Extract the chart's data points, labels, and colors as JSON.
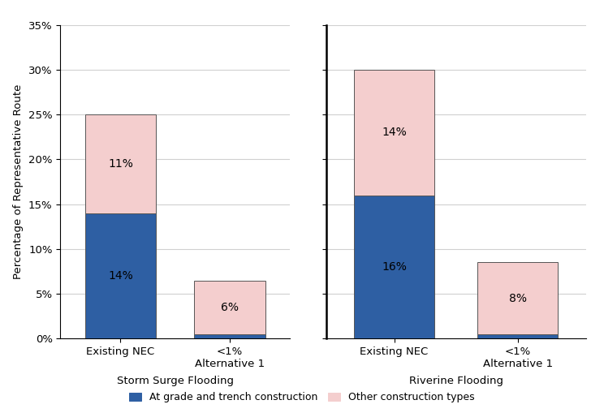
{
  "groups": [
    {
      "label": "Storm Surge Flooding",
      "bars": [
        {
          "x_label": "Existing NEC",
          "blue_value": 14,
          "pink_value": 11,
          "blue_text": "14%",
          "pink_text": "11%"
        },
        {
          "x_label": "Alternative 1",
          "blue_value": 0.5,
          "pink_value": 6,
          "blue_text": "<1%",
          "pink_text": "6%"
        }
      ]
    },
    {
      "label": "Riverine Flooding",
      "bars": [
        {
          "x_label": "Existing NEC",
          "blue_value": 16,
          "pink_value": 14,
          "blue_text": "16%",
          "pink_text": "14%"
        },
        {
          "x_label": "Alternative 1",
          "blue_value": 0.5,
          "pink_value": 8,
          "blue_text": "<1%",
          "pink_text": "8%"
        }
      ]
    }
  ],
  "ylim": [
    0,
    35
  ],
  "yticks": [
    0,
    5,
    10,
    15,
    20,
    25,
    30,
    35
  ],
  "ylabel": "Percentage of Representative Route",
  "blue_color": "#2E5FA3",
  "pink_color": "#F4CECE",
  "bar_width": 0.65,
  "legend_blue_label": "At grade and trench construction",
  "legend_pink_label": "Other construction types",
  "grid_color": "#d0d0d0",
  "tick_fontsize": 9.5,
  "group_label_fontsize": 9.5,
  "ylabel_fontsize": 9.5,
  "bar_text_fontsize": 10
}
